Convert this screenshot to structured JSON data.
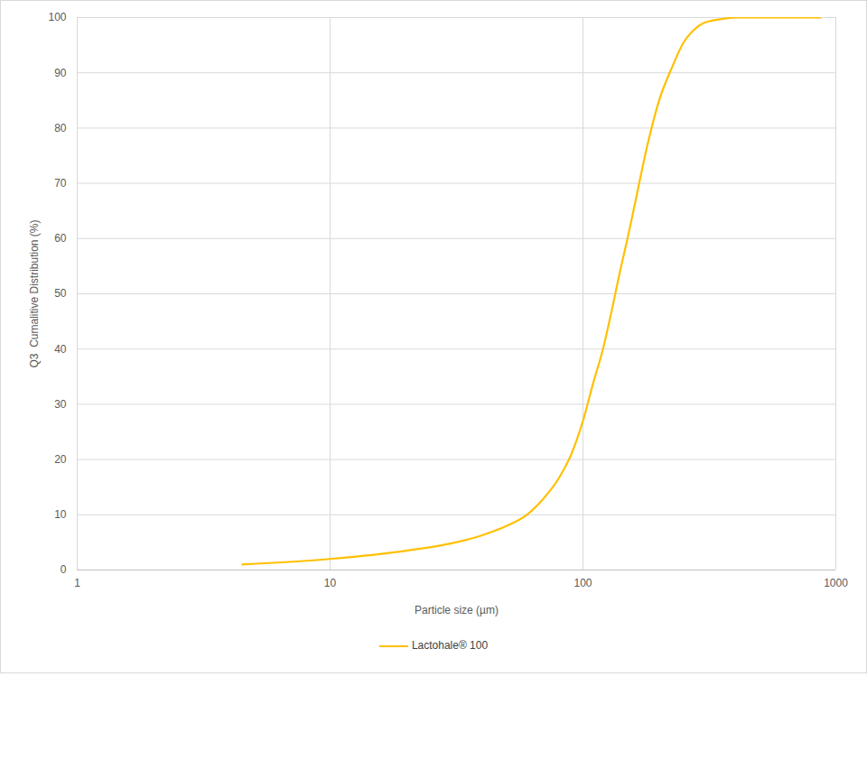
{
  "chart_data": {
    "type": "line",
    "x_label": "Particle size (µm)",
    "y_label": "Q3  Cumalitive Distribution (%)",
    "x": [
      4.5,
      10,
      20,
      30,
      40,
      50,
      60,
      70,
      80,
      90,
      100,
      110,
      120,
      130,
      140,
      150,
      160,
      180,
      200,
      225,
      250,
      275,
      300,
      350,
      400,
      500,
      870
    ],
    "series": [
      {
        "name": "Lactohale® 100",
        "color": "#ffc000",
        "values": [
          1,
          2,
          3.5,
          4.8,
          6.3,
          8,
          10,
          13,
          16.5,
          21,
          27,
          34,
          40,
          47,
          54,
          60,
          66,
          77,
          85,
          91,
          95.5,
          97.8,
          99,
          99.7,
          100,
          100,
          100
        ]
      }
    ],
    "log": "x",
    "xlim": [
      1,
      1000
    ],
    "xticks": [
      1,
      10,
      100,
      1000
    ],
    "ylim": [
      0,
      100
    ],
    "yticks": [
      0,
      10,
      20,
      30,
      40,
      50,
      60,
      70,
      80,
      90,
      100
    ],
    "grid": true,
    "legend": "bottom"
  }
}
